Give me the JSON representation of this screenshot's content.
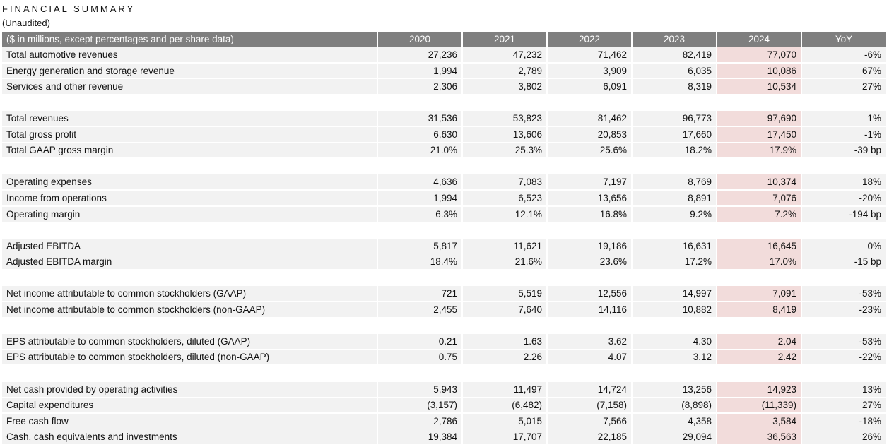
{
  "header": {
    "title": "FINANCIAL SUMMARY",
    "subtitle": "(Unaudited)"
  },
  "table": {
    "columns": [
      "($ in millions, except percentages and per share data)",
      "2020",
      "2021",
      "2022",
      "2023",
      "2024",
      "YoY"
    ],
    "groups": [
      [
        [
          "Total automotive revenues",
          "27,236",
          "47,232",
          "71,462",
          "82,419",
          "77,070",
          "-6%"
        ],
        [
          "Energy generation and storage revenue",
          "1,994",
          "2,789",
          "3,909",
          "6,035",
          "10,086",
          "67%"
        ],
        [
          "Services and other revenue",
          "2,306",
          "3,802",
          "6,091",
          "8,319",
          "10,534",
          "27%"
        ]
      ],
      [
        [
          "Total revenues",
          "31,536",
          "53,823",
          "81,462",
          "96,773",
          "97,690",
          "1%"
        ],
        [
          "Total gross profit",
          "6,630",
          "13,606",
          "20,853",
          "17,660",
          "17,450",
          "-1%"
        ],
        [
          "Total GAAP gross margin",
          "21.0%",
          "25.3%",
          "25.6%",
          "18.2%",
          "17.9%",
          "-39 bp"
        ]
      ],
      [
        [
          "Operating expenses",
          "4,636",
          "7,083",
          "7,197",
          "8,769",
          "10,374",
          "18%"
        ],
        [
          "Income from operations",
          "1,994",
          "6,523",
          "13,656",
          "8,891",
          "7,076",
          "-20%"
        ],
        [
          "Operating margin",
          "6.3%",
          "12.1%",
          "16.8%",
          "9.2%",
          "7.2%",
          "-194 bp"
        ]
      ],
      [
        [
          "Adjusted EBITDA",
          "5,817",
          "11,621",
          "19,186",
          "16,631",
          "16,645",
          "0%"
        ],
        [
          "Adjusted EBITDA margin",
          "18.4%",
          "21.6%",
          "23.6%",
          "17.2%",
          "17.0%",
          "-15 bp"
        ]
      ],
      [
        [
          "Net income attributable to common stockholders (GAAP)",
          "721",
          "5,519",
          "12,556",
          "14,997",
          "7,091",
          "-53%"
        ],
        [
          "Net income attributable to common stockholders (non-GAAP)",
          "2,455",
          "7,640",
          "14,116",
          "10,882",
          "8,419",
          "-23%"
        ]
      ],
      [
        [
          "EPS attributable to common stockholders, diluted (GAAP)",
          "0.21",
          "1.63",
          "3.62",
          "4.30",
          "2.04",
          "-53%"
        ],
        [
          "EPS attributable to common stockholders, diluted (non-GAAP)",
          "0.75",
          "2.26",
          "4.07",
          "3.12",
          "2.42",
          "-22%"
        ]
      ],
      [
        [
          "Net cash provided by operating activities",
          "5,943",
          "11,497",
          "14,724",
          "13,256",
          "14,923",
          "13%"
        ],
        [
          "Capital expenditures",
          "(3,157)",
          "(6,482)",
          "(7,158)",
          "(8,898)",
          "(11,339)",
          "27%"
        ],
        [
          "Free cash flow",
          "2,786",
          "5,015",
          "7,566",
          "4,358",
          "3,584",
          "-18%"
        ],
        [
          "Cash, cash equivalents and investments",
          "19,384",
          "17,707",
          "22,185",
          "29,094",
          "36,563",
          "26%"
        ]
      ]
    ]
  }
}
